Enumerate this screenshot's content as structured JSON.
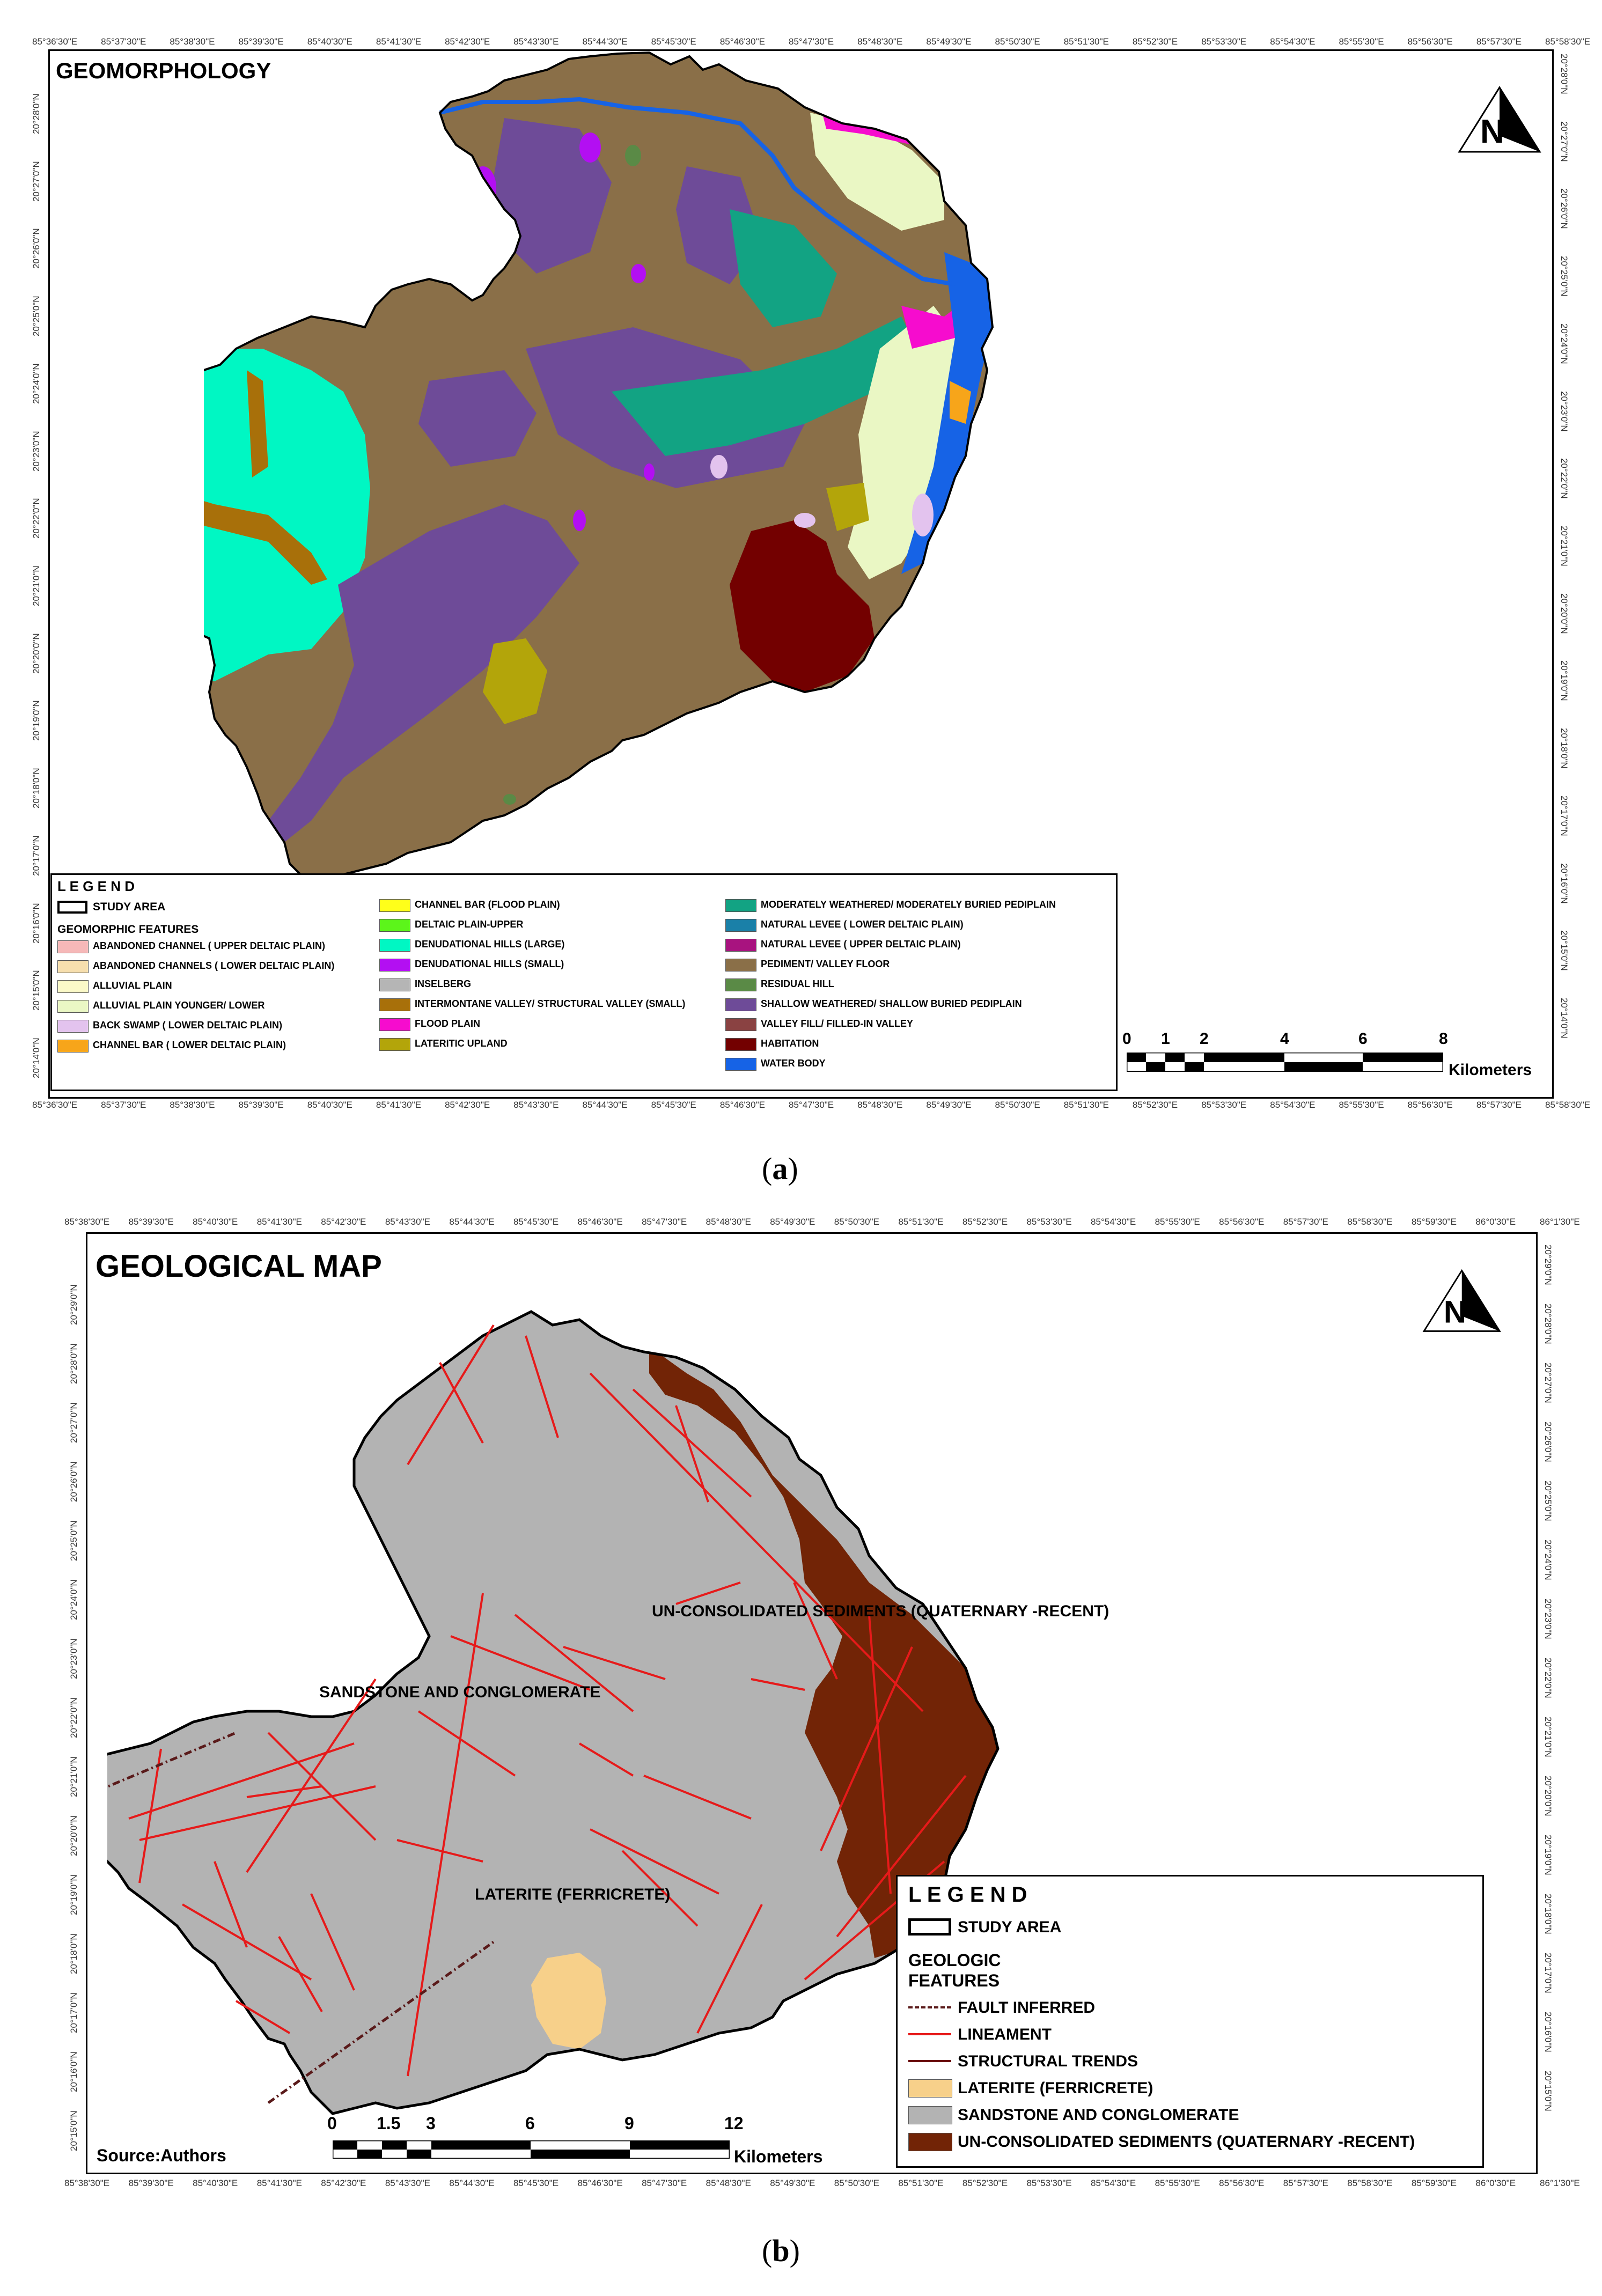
{
  "panel_a": {
    "title": "GEOMORPHOLOGY",
    "caption_open": "(",
    "caption_letter": "a",
    "caption_close": ")",
    "x_ticks": [
      "85°36'30\"E",
      "85°37'30\"E",
      "85°38'30\"E",
      "85°39'30\"E",
      "85°40'30\"E",
      "85°41'30\"E",
      "85°42'30\"E",
      "85°43'30\"E",
      "85°44'30\"E",
      "85°45'30\"E",
      "85°46'30\"E",
      "85°47'30\"E",
      "85°48'30\"E",
      "85°49'30\"E",
      "85°50'30\"E",
      "85°51'30\"E",
      "85°52'30\"E",
      "85°53'30\"E",
      "85°54'30\"E",
      "85°55'30\"E",
      "85°56'30\"E",
      "85°57'30\"E",
      "85°58'30\"E"
    ],
    "y_ticks": [
      "20°28'0\"N",
      "20°27'0\"N",
      "20°26'0\"N",
      "20°25'0\"N",
      "20°24'0\"N",
      "20°23'0\"N",
      "20°22'0\"N",
      "20°21'0\"N",
      "20°20'0\"N",
      "20°19'0\"N",
      "20°18'0\"N",
      "20°17'0\"N",
      "20°16'0\"N",
      "20°15'0\"N",
      "20°14'0\"N"
    ],
    "legend": {
      "heading": "L E G E N D",
      "study_area": "STUDY AREA",
      "subheading": "GEOMORPHIC FEATURES",
      "col1": [
        {
          "label": "ABANDONED CHANNEL ( UPPER DELTAIC PLAIN)",
          "color": "#f6b8b8"
        },
        {
          "label": "ABANDONED CHANNELS ( LOWER DELTAIC PLAIN)",
          "color": "#f7dfae"
        },
        {
          "label": "ALLUVIAL PLAIN",
          "color": "#fbf9c8"
        },
        {
          "label": "ALLUVIAL PLAIN YOUNGER/ LOWER",
          "color": "#eaf7c4"
        },
        {
          "label": "BACK SWAMP ( LOWER DELTAIC PLAIN)",
          "color": "#e3c3ee"
        },
        {
          "label": "CHANNEL BAR ( LOWER DELTAIC PLAIN)",
          "color": "#f7a51a"
        }
      ],
      "col2": [
        {
          "label": "CHANNEL BAR (FLOOD PLAIN)",
          "color": "#ffff1a"
        },
        {
          "label": "DELTAIC PLAIN-UPPER",
          "color": "#5cf51a"
        },
        {
          "label": "DENUDATIONAL HILLS (LARGE)",
          "color": "#00f7c3"
        },
        {
          "label": "DENUDATIONAL HILLS (SMALL)",
          "color": "#b30ff2"
        },
        {
          "label": "INSELBERG",
          "color": "#b5b5b5"
        },
        {
          "label": "INTERMONTANE VALLEY/ STRUCTURAL VALLEY (SMALL)",
          "color": "#a8700a"
        },
        {
          "label": "FLOOD PLAIN",
          "color": "#f60cce"
        },
        {
          "label": "LATERITIC UPLAND",
          "color": "#b3a50a"
        }
      ],
      "col3": [
        {
          "label": "MODERATELY WEATHERED/ MODERATELY BURIED PEDIPLAIN",
          "color": "#12a383"
        },
        {
          "label": "NATURAL LEVEE ( LOWER DELTAIC PLAIN)",
          "color": "#1a80a8"
        },
        {
          "label": "NATURAL LEVEE ( UPPER DELTAIC PLAIN)",
          "color": "#a8137f"
        },
        {
          "label": "PEDIMENT/  VALLEY FLOOR",
          "color": "#8a6f48"
        },
        {
          "label": "RESIDUAL HILL",
          "color": "#5a8a46"
        },
        {
          "label": "SHALLOW WEATHERED/ SHALLOW BURIED PEDIPLAIN",
          "color": "#6e4b98"
        },
        {
          "label": "VALLEY FILL/ FILLED-IN VALLEY",
          "color": "#8a4242"
        },
        {
          "label": "HABITATION",
          "color": "#730000"
        },
        {
          "label": "WATER BODY",
          "color": "#1663e6"
        }
      ]
    },
    "scale": {
      "ticks": [
        "0",
        "1",
        "2",
        "4",
        "6",
        "8"
      ],
      "unit": "Kilometers"
    }
  },
  "panel_b": {
    "title": "GEOLOGICAL MAP",
    "caption_open": "(",
    "caption_letter": "b",
    "caption_close": ")",
    "source": "Source:Authors",
    "x_ticks": [
      "85°38'30\"E",
      "85°39'30\"E",
      "85°40'30\"E",
      "85°41'30\"E",
      "85°42'30\"E",
      "85°43'30\"E",
      "85°44'30\"E",
      "85°45'30\"E",
      "85°46'30\"E",
      "85°47'30\"E",
      "85°48'30\"E",
      "85°49'30\"E",
      "85°50'30\"E",
      "85°51'30\"E",
      "85°52'30\"E",
      "85°53'30\"E",
      "85°54'30\"E",
      "85°55'30\"E",
      "85°56'30\"E",
      "85°57'30\"E",
      "85°58'30\"E",
      "85°59'30\"E",
      "86°0'30\"E",
      "86°1'30\"E"
    ],
    "y_ticks": [
      "20°29'0\"N",
      "20°28'0\"N",
      "20°27'0\"N",
      "20°26'0\"N",
      "20°25'0\"N",
      "20°24'0\"N",
      "20°23'0\"N",
      "20°22'0\"N",
      "20°21'0\"N",
      "20°20'0\"N",
      "20°19'0\"N",
      "20°18'0\"N",
      "20°17'0\"N",
      "20°16'0\"N",
      "20°15'0\"N"
    ],
    "map_labels": {
      "unconsolidated": "UN-CONSOLIDATED SEDIMENTS (QUATERNARY -RECENT)",
      "sandstone": "SANDSTONE AND CONGLOMERATE",
      "laterite": "LATERITE (FERRICRETE)"
    },
    "legend": {
      "heading": "L E G E N D",
      "study_area": "STUDY AREA",
      "subheading_1": "GEOLOGIC",
      "subheading_2": "FEATURES",
      "items": [
        {
          "label": "FAULT INFERRED",
          "kind": "dashline",
          "color": "#5a1a1a"
        },
        {
          "label": "LINEAMENT",
          "kind": "line",
          "color": "#e61a1a"
        },
        {
          "label": "STRUCTURAL TRENDS",
          "kind": "line",
          "color": "#6b1010"
        },
        {
          "label": "LATERITE (FERRICRETE)",
          "kind": "fill",
          "color": "#f7d08a"
        },
        {
          "label": "SANDSTONE AND CONGLOMERATE",
          "kind": "fill",
          "color": "#b3b3b3"
        },
        {
          "label": "UN-CONSOLIDATED SEDIMENTS (QUATERNARY -RECENT)",
          "kind": "fill",
          "color": "#722406"
        }
      ]
    },
    "scale": {
      "ticks": [
        "0",
        "1.5",
        "3",
        "6",
        "9",
        "12"
      ],
      "unit": "Kilometers"
    }
  }
}
